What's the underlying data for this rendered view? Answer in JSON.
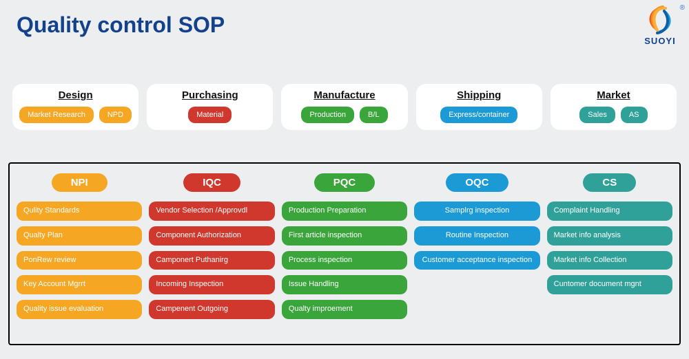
{
  "title": {
    "text": "Quality control SOP",
    "color": "#14418c"
  },
  "logo": {
    "text": "SUOYI",
    "text_color": "#14418c",
    "reg_color": "#2a6fd6",
    "swirl_colors": [
      "#f15a24",
      "#f7931e",
      "#fbb03b",
      "#1b9ad6",
      "#0e5fa6"
    ]
  },
  "background_color": "#eceeef",
  "stages": [
    {
      "title": "Design",
      "pill_color": "#f5a623",
      "pills": [
        "Market Research",
        "NPD"
      ]
    },
    {
      "title": "Purchasing",
      "pill_color": "#d0382d",
      "pills": [
        "Material"
      ]
    },
    {
      "title": "Manufacture",
      "pill_color": "#3aa53a",
      "pills": [
        "Production",
        "B/L"
      ]
    },
    {
      "title": "Shipping",
      "pill_color": "#1b9ad6",
      "pills": [
        "Express/container"
      ]
    },
    {
      "title": "Market",
      "pill_color": "#2fa198",
      "pills": [
        "Sales",
        "AS"
      ]
    }
  ],
  "qc_columns": [
    {
      "head": "NPI",
      "head_color": "#f5a623",
      "item_color": "#f5a623",
      "align": "left",
      "items": [
        "Qulity Standards",
        "Qualty Plan",
        "PonRew review",
        "Key Account Mgrrt",
        "Quality issue evaluation"
      ]
    },
    {
      "head": "IQC",
      "head_color": "#d0382d",
      "item_color": "#d0382d",
      "align": "left",
      "items": [
        "Vendor Selection /Approvdl",
        "Component Authorization",
        "Camponert Puthanirg",
        "Incoming Inspection",
        "Campenent Outgoing"
      ]
    },
    {
      "head": "PQC",
      "head_color": "#3aa53a",
      "item_color": "#3aa53a",
      "align": "left",
      "items": [
        "Production Preparation",
        "First article inspection",
        "Process inspection",
        "Issue Handling",
        "Qualty improement"
      ]
    },
    {
      "head": "OQC",
      "head_color": "#1b9ad6",
      "item_color": "#1b9ad6",
      "align": "center",
      "items": [
        "Samplrg inspection",
        "Routine Inspection",
        "Customer acceptance inspection"
      ]
    },
    {
      "head": "CS",
      "head_color": "#2fa198",
      "item_color": "#2fa198",
      "align": "left",
      "items": [
        "Complaint Handling",
        "Market info analysis",
        "Market info Collection",
        "Cuntomer document mgnt"
      ]
    }
  ]
}
